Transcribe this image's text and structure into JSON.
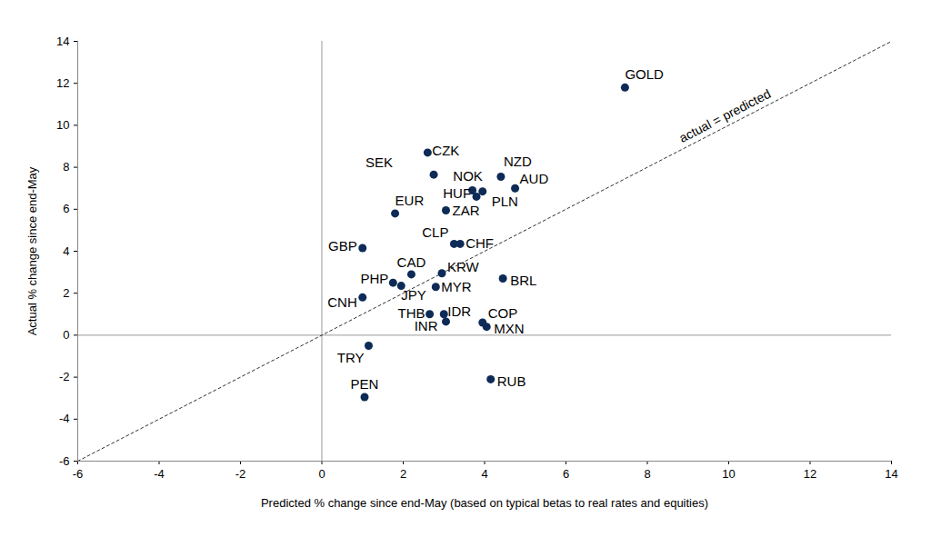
{
  "chart_data": {
    "type": "scatter",
    "x_label": "Predicted % change since end-May (based on typical betas to real rates and equities)",
    "y_label": "Actual % change since end-May",
    "annotation": "actual = predicted",
    "color": "#0d2b56",
    "marker": "circle",
    "grid": false,
    "xlim": [
      -6,
      14
    ],
    "ylim": [
      -6,
      14
    ],
    "xticks": [
      -6,
      -4,
      -2,
      0,
      2,
      4,
      6,
      8,
      10,
      12,
      14
    ],
    "yticks": [
      -6,
      -4,
      -2,
      0,
      2,
      4,
      6,
      8,
      10,
      12,
      14
    ],
    "labels": [
      "GOLD",
      "CZK",
      "SEK",
      "NZD",
      "NOK",
      "PLN",
      "AUD",
      "HUF",
      "ZAR",
      "EUR",
      "CLP",
      "CHF",
      "GBP",
      "CAD",
      "KRW",
      "PHP",
      "JPY",
      "MYR",
      "BRL",
      "CNH",
      "THB",
      "IDR",
      "INR",
      "COP",
      "MXN",
      "TRY",
      "PEN",
      "RUB"
    ],
    "x": [
      7.45,
      2.6,
      2.75,
      4.4,
      3.7,
      3.95,
      4.75,
      3.8,
      3.05,
      1.8,
      3.25,
      3.4,
      1.0,
      2.2,
      2.95,
      1.75,
      1.95,
      2.8,
      4.45,
      1.0,
      2.65,
      3.0,
      3.05,
      3.95,
      4.05,
      1.15,
      1.05,
      4.15
    ],
    "y": [
      11.8,
      8.7,
      7.65,
      7.55,
      6.9,
      6.85,
      7.0,
      6.6,
      5.95,
      5.8,
      4.35,
      4.35,
      4.15,
      2.9,
      2.95,
      2.5,
      2.35,
      2.3,
      2.7,
      1.8,
      1.0,
      1.0,
      0.65,
      0.6,
      0.4,
      -0.5,
      -2.95,
      -2.1
    ]
  }
}
